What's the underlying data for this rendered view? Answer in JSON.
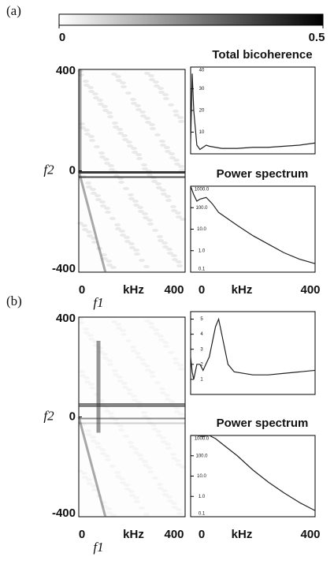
{
  "chart_data": [
    {
      "type": "colorbar",
      "xlim": [
        0,
        0.5
      ],
      "xticks": [
        0,
        0.5
      ]
    },
    {
      "type": "heatmap",
      "panel": "(a)",
      "xlim": [
        0,
        400
      ],
      "ylim": [
        -400,
        400
      ],
      "xticks": [
        0,
        400
      ],
      "yticks": [
        400,
        0,
        -400
      ],
      "xlabel": "kHz",
      "xvar": "f1",
      "ylabel": "f2"
    },
    {
      "type": "line",
      "title": "Total bicoherence",
      "color": "#222",
      "xlim": [
        0,
        400
      ],
      "ylim": [
        0,
        40
      ],
      "yticks": [
        10,
        20,
        30,
        40
      ],
      "x": [
        0,
        5,
        10,
        20,
        30,
        40,
        50,
        60,
        80,
        100,
        150,
        200,
        250,
        300,
        350,
        400
      ],
      "values": [
        5,
        37,
        20,
        4,
        2,
        3,
        4,
        3.5,
        3,
        2.5,
        2.5,
        3,
        3,
        3.5,
        4,
        5
      ]
    },
    {
      "type": "line",
      "title": "Power spectrum",
      "color": "#222",
      "log": true,
      "xlim": [
        0,
        400
      ],
      "ylim": [
        0.1,
        1000
      ],
      "xticks": [
        0,
        400
      ],
      "xlabel": "kHz",
      "yticks": [
        0.1,
        {
          "value": 1,
          "label": "1.0"
        },
        {
          "value": 10,
          "label": "10.0"
        },
        {
          "value": 100,
          "label": "100.0"
        },
        {
          "value": 1000,
          "label": "1000.0"
        }
      ],
      "x": [
        0,
        10,
        20,
        30,
        50,
        70,
        90,
        120,
        150,
        200,
        250,
        300,
        350,
        400
      ],
      "values": [
        1000,
        400,
        200,
        250,
        300,
        150,
        60,
        30,
        15,
        5,
        2,
        0.8,
        0.4,
        0.25
      ]
    },
    {
      "type": "heatmap",
      "panel": "(b)",
      "xlim": [
        0,
        400
      ],
      "ylim": [
        -400,
        400
      ],
      "xticks": [
        0,
        400
      ],
      "yticks": [
        400,
        0,
        -400
      ],
      "xlabel": "kHz",
      "xvar": "f1",
      "ylabel": "f2"
    },
    {
      "type": "line",
      "color": "#222",
      "xlim": [
        0,
        400
      ],
      "ylim": [
        0,
        5.5
      ],
      "yticks": [
        1,
        2,
        3,
        4,
        5
      ],
      "x": [
        0,
        5,
        10,
        20,
        30,
        40,
        60,
        80,
        90,
        100,
        120,
        140,
        200,
        250,
        300,
        350,
        400
      ],
      "values": [
        2.5,
        1.5,
        1,
        2,
        2,
        1.6,
        2.5,
        4.5,
        5,
        4,
        2,
        1.5,
        1.3,
        1.3,
        1.4,
        1.5,
        1.6
      ]
    },
    {
      "type": "line",
      "title": "Power spectrum",
      "color": "#222",
      "log": true,
      "xlim": [
        0,
        400
      ],
      "ylim": [
        0.1,
        1000
      ],
      "xticks": [
        0,
        400
      ],
      "xlabel": "kHz",
      "yticks": [
        0.1,
        {
          "value": 1,
          "label": "1.0"
        },
        {
          "value": 10,
          "label": "10.0"
        },
        {
          "value": 100,
          "label": "100.0"
        },
        {
          "value": 1000,
          "label": "1000.0"
        }
      ],
      "x": [
        0,
        20,
        40,
        60,
        80,
        100,
        150,
        200,
        250,
        300,
        350,
        400
      ],
      "values": [
        1000,
        1000,
        900,
        1000,
        700,
        400,
        100,
        20,
        5,
        1.5,
        0.5,
        0.2
      ]
    }
  ]
}
